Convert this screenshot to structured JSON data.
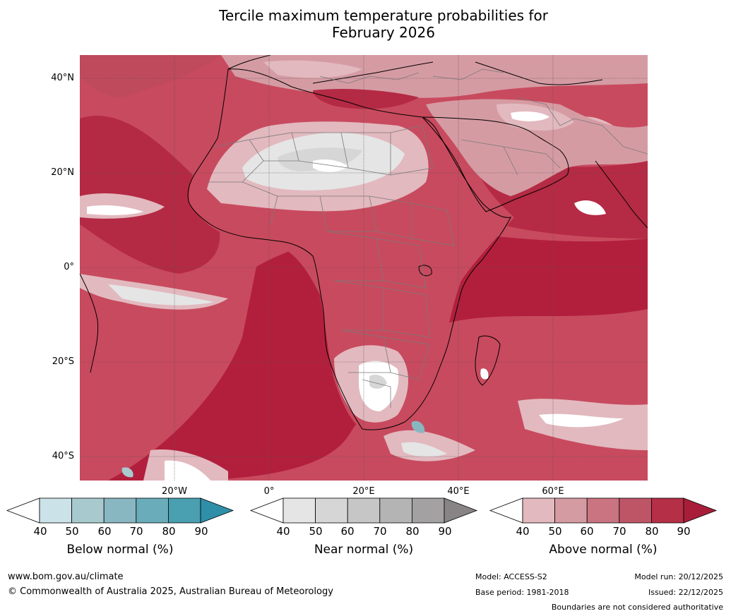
{
  "title": {
    "line1": "Tercile maximum temperature probabilities for",
    "line2": "February 2026"
  },
  "map": {
    "lat_labels": [
      "40°N",
      "20°N",
      "0°",
      "20°S",
      "40°S"
    ],
    "lon_labels": [
      "20°W",
      "0°",
      "20°E",
      "40°E",
      "60°E"
    ],
    "layers": [
      "ocean-field",
      "land-field",
      "coastlines",
      "country-borders",
      "graticule"
    ]
  },
  "colorbars": [
    {
      "label": "Below normal (%)",
      "ticks": [
        "40",
        "50",
        "60",
        "70",
        "80",
        "90"
      ],
      "colors": [
        "#ffffff",
        "#cbe2e8",
        "#a8cacf",
        "#88b7c2",
        "#6aacba",
        "#4a9fb0",
        "#2f8fa8"
      ]
    },
    {
      "label": "Near normal (%)",
      "ticks": [
        "40",
        "50",
        "60",
        "70",
        "80",
        "90"
      ],
      "colors": [
        "#ffffff",
        "#e5e5e5",
        "#d6d6d6",
        "#c6c6c6",
        "#b4b4b4",
        "#a3a1a2",
        "#888384"
      ]
    },
    {
      "label": "Above normal (%)",
      "ticks": [
        "40",
        "50",
        "60",
        "70",
        "80",
        "90"
      ],
      "colors": [
        "#ffffff",
        "#e2b9bf",
        "#d59ba3",
        "#c97480",
        "#bd5567",
        "#b52f46",
        "#a81e3a"
      ]
    }
  ],
  "footer": {
    "website": "www.bom.gov.au/climate",
    "copyright": "© Commonwealth of Australia 2025, Australian Bureau of Meteorology",
    "model": "Model: ACCESS-S2",
    "base_period": "Base period: 1981-2018",
    "model_run": "Model run: 20/12/2025",
    "issued": "Issued: 22/12/2025",
    "disclaimer": "Boundaries are not considered authoritative"
  }
}
